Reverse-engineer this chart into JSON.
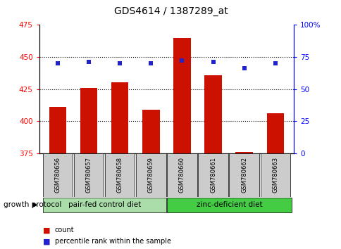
{
  "title": "GDS4614 / 1387289_at",
  "samples": [
    "GSM780656",
    "GSM780657",
    "GSM780658",
    "GSM780659",
    "GSM780660",
    "GSM780661",
    "GSM780662",
    "GSM780663"
  ],
  "bar_values": [
    411,
    426,
    430,
    409,
    465,
    436,
    376,
    406
  ],
  "percentile_values": [
    70,
    71,
    70,
    70,
    72,
    71,
    66,
    70
  ],
  "ylim_left": [
    375,
    475
  ],
  "ylim_right": [
    0,
    100
  ],
  "yticks_left": [
    375,
    400,
    425,
    450,
    475
  ],
  "yticks_right": [
    0,
    25,
    50,
    75,
    100
  ],
  "bar_color": "#cc1100",
  "dot_color": "#2222cc",
  "bar_width": 0.55,
  "group1_label": "pair-fed control diet",
  "group2_label": "zinc-deficient diet",
  "group1_color": "#aaddaa",
  "group2_color": "#44cc44",
  "growth_protocol_label": "growth protocol",
  "legend_count_label": "count",
  "legend_pct_label": "percentile rank within the sample",
  "box_color": "#cccccc",
  "title_fontsize": 10,
  "tick_fontsize": 7.5,
  "sample_fontsize": 6,
  "group_fontsize": 7.5,
  "legend_fontsize": 7
}
